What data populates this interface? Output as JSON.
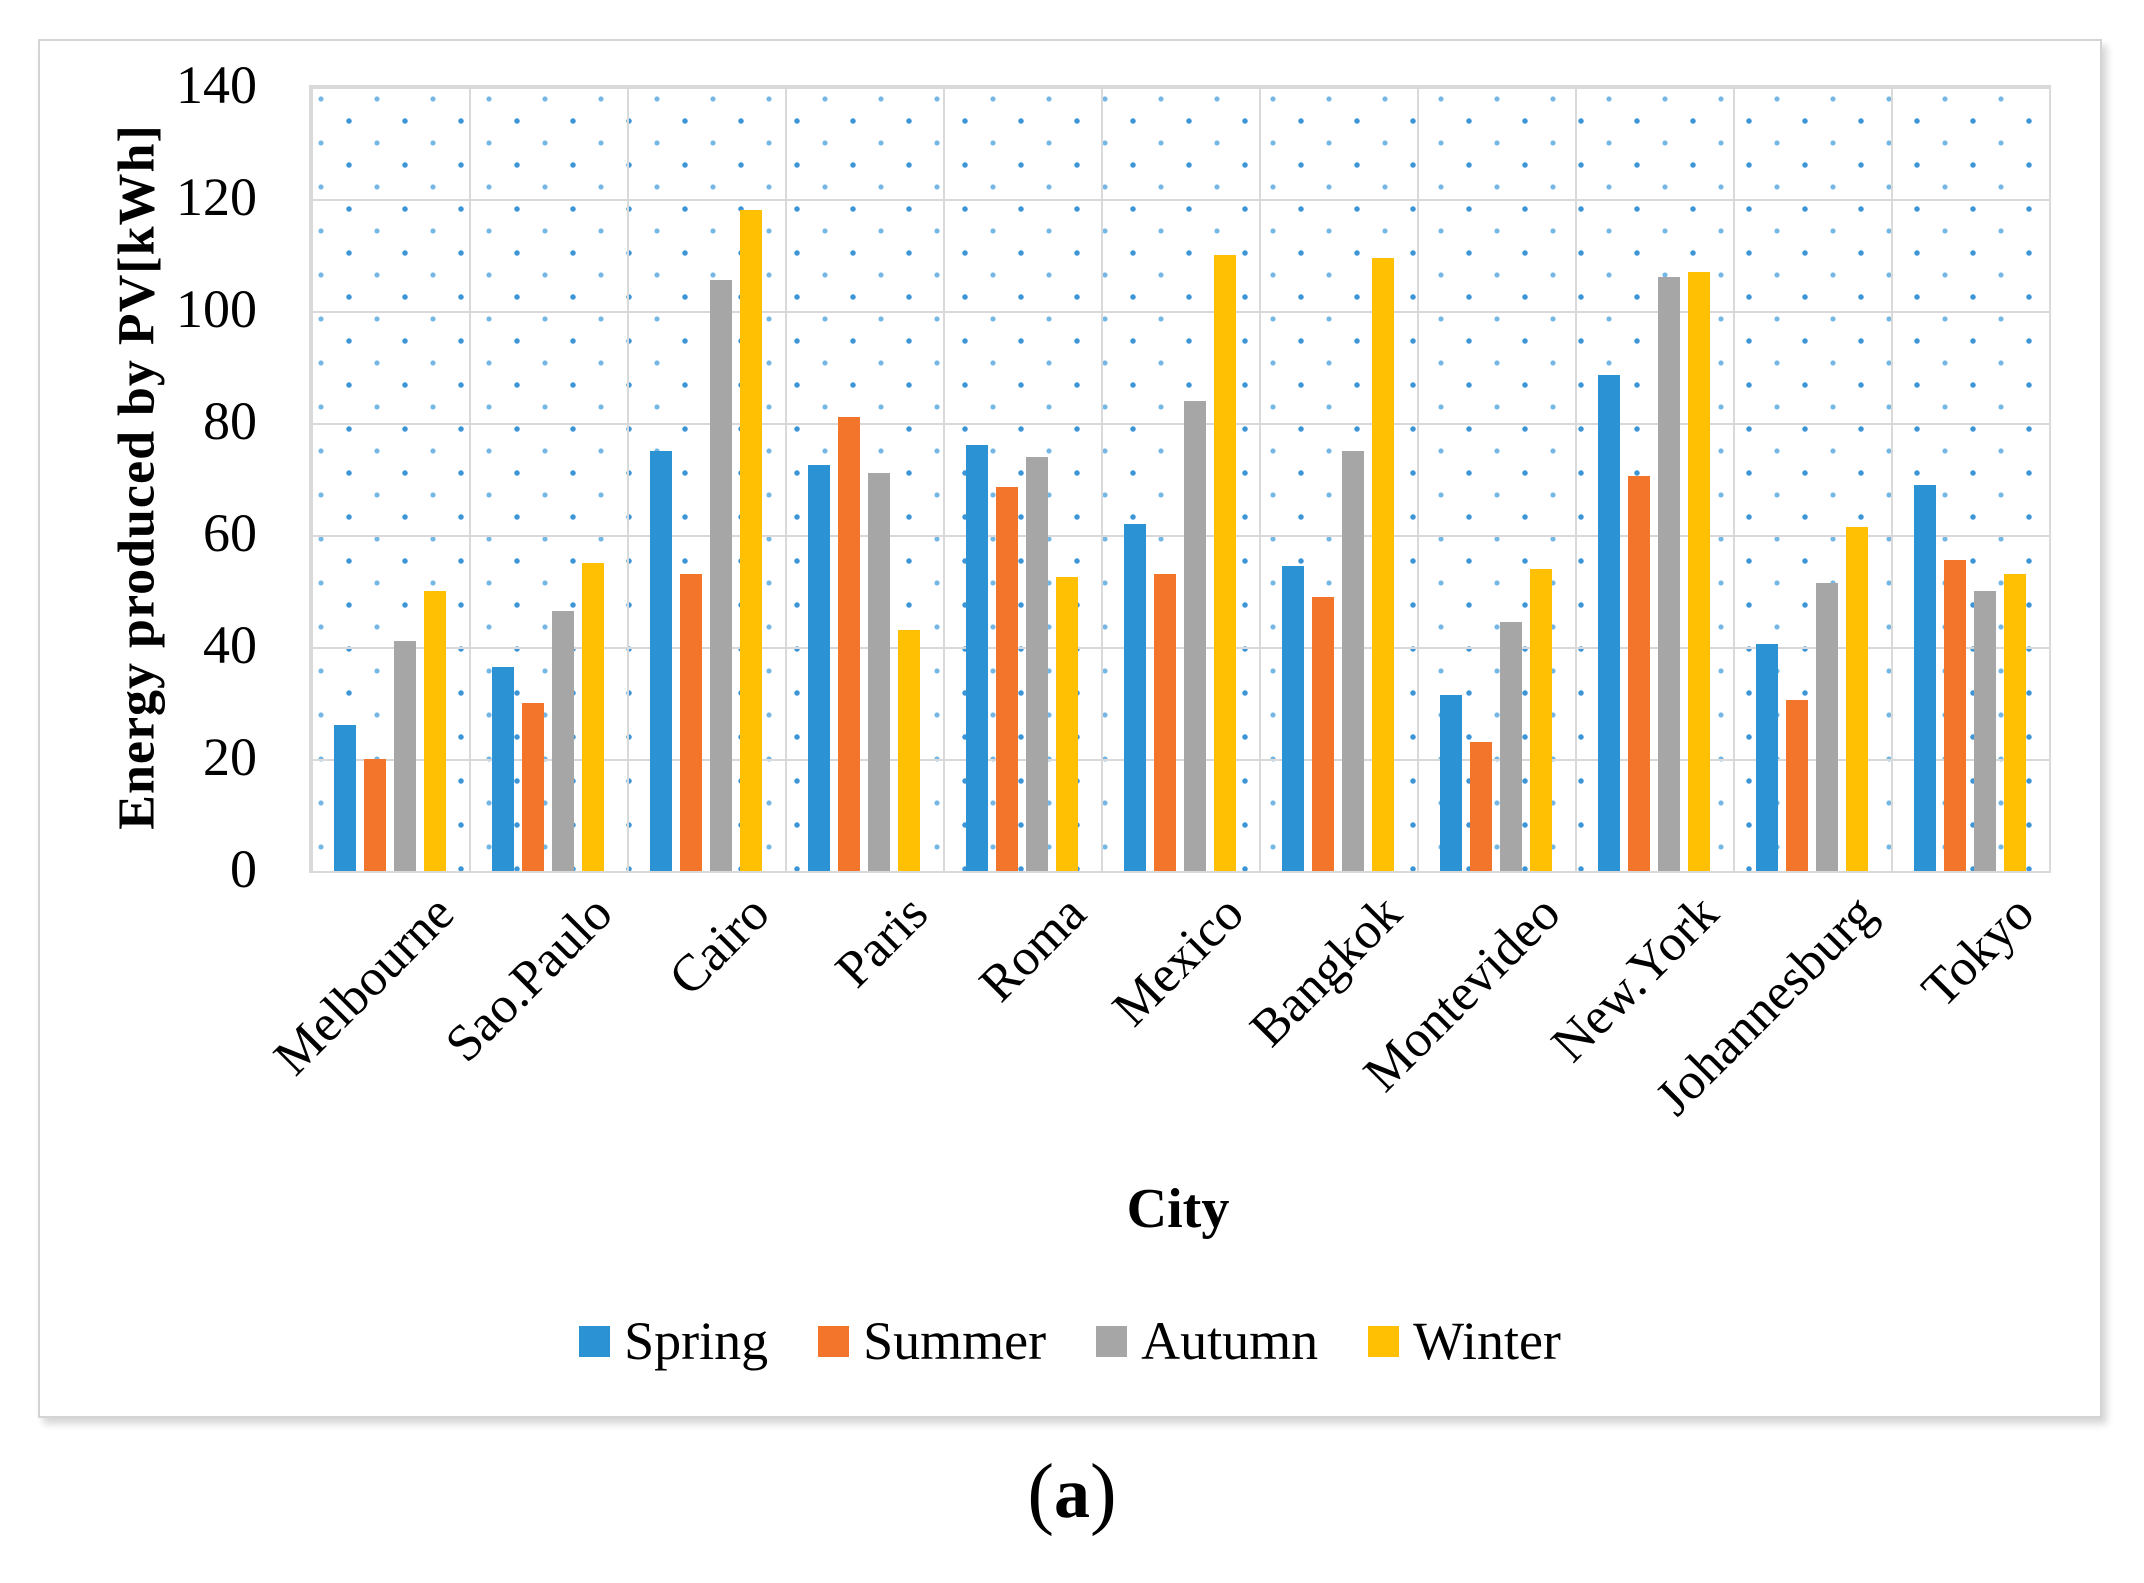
{
  "caption": {
    "open": "(",
    "letter": "a",
    "close": ")"
  },
  "colors": {
    "spring_blue": "#2B93D3",
    "summer_orange": "#F2752B",
    "autumn_gray": "#A6A6A6",
    "winter_yellow": "#FFC003",
    "gridline": "#D9D9D9",
    "plot_dot": "#2C8CD3"
  },
  "chart_data": {
    "type": "bar",
    "title": "",
    "xlabel": "City",
    "ylabel": "Energy produced by PV[kWh]",
    "ylim": [
      0,
      140
    ],
    "yticks": [
      0,
      20,
      40,
      60,
      80,
      100,
      120,
      140
    ],
    "grid": true,
    "legend_position": "bottom",
    "plot_background": "blue dotted pattern",
    "categories": [
      "Melbourne",
      "Sao.Paulo",
      "Cairo",
      "Paris",
      "Roma",
      "Mexico",
      "Bangkok",
      "Montevideo",
      "New.York",
      "Johannesburg",
      "Tokyo"
    ],
    "series": [
      {
        "name": "Spring",
        "color": "#2B93D3",
        "values": [
          26,
          36.5,
          75,
          72.5,
          76,
          62,
          54.5,
          31.5,
          88.5,
          40.5,
          69
        ]
      },
      {
        "name": "Summer",
        "color": "#F2752B",
        "values": [
          20,
          30,
          53,
          81,
          68.5,
          53,
          49,
          23,
          70.5,
          30.5,
          55.5
        ]
      },
      {
        "name": "Autumn",
        "color": "#A6A6A6",
        "values": [
          41,
          46.5,
          105.5,
          71,
          74,
          84,
          75,
          44.5,
          106,
          51.5,
          50
        ]
      },
      {
        "name": "Winter",
        "color": "#FFC003",
        "values": [
          50,
          55,
          118,
          43,
          52.5,
          110,
          109.5,
          54,
          107,
          61.5,
          53
        ]
      }
    ]
  }
}
